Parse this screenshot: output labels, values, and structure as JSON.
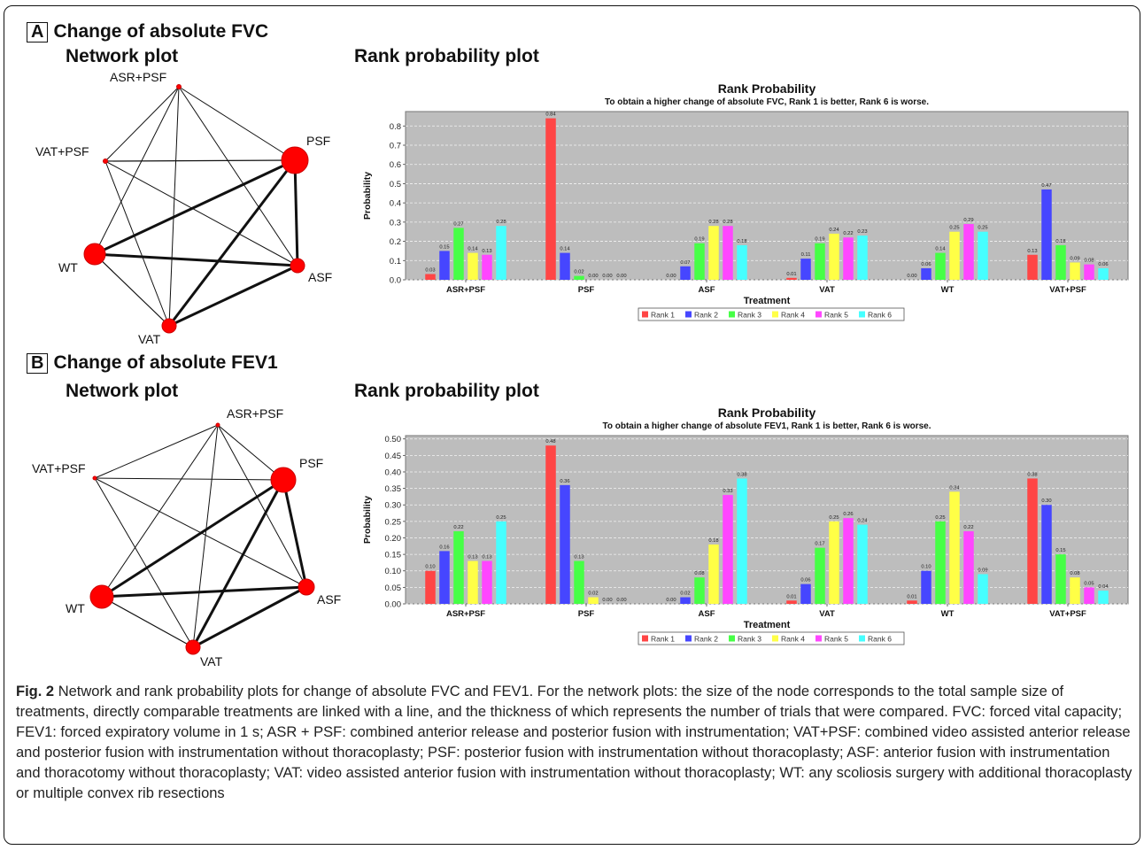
{
  "figure": {
    "caption_label": "Fig. 2",
    "caption_text": "Network and rank probability plots for change of absolute FVC and FEV1. For the network plots: the size of the node corresponds to the total sample size of treatments, directly comparable treatments are linked with a line, and the thickness of which represents the number of trials that were compared. FVC: forced vital capacity; FEV1: forced expiratory volume in 1 s; ASR + PSF: combined anterior release and posterior fusion with instrumentation; VAT+PSF: combined video assisted anterior release and posterior fusion with instrumentation without thoracoplasty; PSF: posterior fusion with instrumentation without thoracoplasty; ASF: anterior fusion with instrumentation and thoracotomy without thoracoplasty; VAT: video assisted anterior fusion with instrumentation without thoracoplasty; WT: any scoliosis surgery with additional thoracoplasty or multiple convex rib resections"
  },
  "panels": [
    {
      "letter": "A",
      "heading": "Change of absolute FVC",
      "network_heading": "Network plot",
      "rank_heading": "Rank probability plot",
      "network": {
        "nodes": [
          {
            "id": "ASR+PSF",
            "label": "ASR+PSF"
          },
          {
            "id": "VAT+PSF",
            "label": "VAT+PSF"
          },
          {
            "id": "PSF",
            "label": "PSF"
          },
          {
            "id": "WT",
            "label": "WT"
          },
          {
            "id": "ASF",
            "label": "ASF"
          },
          {
            "id": "VAT",
            "label": "VAT"
          }
        ]
      }
    },
    {
      "letter": "B",
      "heading": "Change of absolute FEV1",
      "network_heading": "Network plot",
      "rank_heading": "Rank probability plot",
      "network": {
        "nodes": [
          {
            "id": "ASR+PSF",
            "label": "ASR+PSF"
          },
          {
            "id": "VAT+PSF",
            "label": "VAT+PSF"
          },
          {
            "id": "PSF",
            "label": "PSF"
          },
          {
            "id": "WT",
            "label": "WT"
          },
          {
            "id": "ASF",
            "label": "ASF"
          },
          {
            "id": "VAT",
            "label": "VAT"
          }
        ]
      }
    }
  ],
  "chart_data": [
    {
      "type": "bar",
      "title": "Rank Probability",
      "subtitle": "To obtain a higher change of absolute FVC, Rank 1 is better, Rank 6 is worse.",
      "xlabel": "Treatment",
      "ylabel": "Probability",
      "ylim": [
        0,
        0.875
      ],
      "yticks": [
        "0.0",
        "0.1",
        "0.2",
        "0.3",
        "0.4",
        "0.5",
        "0.6",
        "0.7",
        "0.8"
      ],
      "categories": [
        "ASR+PSF",
        "PSF",
        "ASF",
        "VAT",
        "WT",
        "VAT+PSF"
      ],
      "series": [
        {
          "name": "Rank 1",
          "color": "#ff4545",
          "values": [
            0.03,
            0.84,
            0.0,
            0.01,
            0.0,
            0.13
          ]
        },
        {
          "name": "Rank 2",
          "color": "#4646ff",
          "values": [
            0.15,
            0.14,
            0.07,
            0.11,
            0.06,
            0.47
          ]
        },
        {
          "name": "Rank 3",
          "color": "#46ff46",
          "values": [
            0.27,
            0.02,
            0.19,
            0.19,
            0.14,
            0.18
          ]
        },
        {
          "name": "Rank 4",
          "color": "#ffff46",
          "values": [
            0.14,
            0.0,
            0.28,
            0.24,
            0.25,
            0.09
          ]
        },
        {
          "name": "Rank 5",
          "color": "#ff46ff",
          "values": [
            0.13,
            0.0,
            0.28,
            0.22,
            0.29,
            0.08
          ]
        },
        {
          "name": "Rank 6",
          "color": "#46ffff",
          "values": [
            0.28,
            0.0,
            0.18,
            0.23,
            0.25,
            0.06
          ]
        }
      ],
      "value_labels": [
        [
          "0.03",
          "0.84",
          "0.00",
          "0.01",
          "0.00",
          "0.13"
        ],
        [
          "0.15",
          "0.14",
          "0.07",
          "0.11",
          "0.06",
          "0.47"
        ],
        [
          "0.27",
          "0.02",
          "0.19",
          "0.19",
          "0.14",
          "0.18"
        ],
        [
          "0.14",
          "0.00",
          "0.28",
          "0.24",
          "0.25",
          "0.09"
        ],
        [
          "0.13",
          "0.00",
          "0.28",
          "0.22",
          "0.29",
          "0.08"
        ],
        [
          "0.28",
          "0.00",
          "0.18",
          "0.23",
          "0.25",
          "0.06"
        ]
      ],
      "grid": true,
      "legend_position": "bottom",
      "plot_background": "#bdbdbd"
    },
    {
      "type": "bar",
      "title": "Rank Probability",
      "subtitle": "To obtain a higher change of absolute FEV1, Rank 1 is better, Rank 6 is worse.",
      "xlabel": "Treatment",
      "ylabel": "Probability",
      "ylim": [
        0,
        0.51
      ],
      "yticks": [
        "0.00",
        "0.05",
        "0.10",
        "0.15",
        "0.20",
        "0.25",
        "0.30",
        "0.35",
        "0.40",
        "0.45",
        "0.50"
      ],
      "categories": [
        "ASR+PSF",
        "PSF",
        "ASF",
        "VAT",
        "WT",
        "VAT+PSF"
      ],
      "series": [
        {
          "name": "Rank 1",
          "color": "#ff4545",
          "values": [
            0.1,
            0.48,
            0.0,
            0.01,
            0.01,
            0.38
          ]
        },
        {
          "name": "Rank 2",
          "color": "#4646ff",
          "values": [
            0.16,
            0.36,
            0.02,
            0.06,
            0.1,
            0.3
          ]
        },
        {
          "name": "Rank 3",
          "color": "#46ff46",
          "values": [
            0.22,
            0.13,
            0.08,
            0.17,
            0.25,
            0.15
          ]
        },
        {
          "name": "Rank 4",
          "color": "#ffff46",
          "values": [
            0.13,
            0.02,
            0.18,
            0.25,
            0.34,
            0.08
          ]
        },
        {
          "name": "Rank 5",
          "color": "#ff46ff",
          "values": [
            0.13,
            0.0,
            0.33,
            0.26,
            0.22,
            0.05
          ]
        },
        {
          "name": "Rank 6",
          "color": "#46ffff",
          "values": [
            0.25,
            0.0,
            0.38,
            0.24,
            0.09,
            0.04
          ]
        }
      ],
      "value_labels": [
        [
          "0.10",
          "0.48",
          "0.00",
          "0.01",
          "0.01",
          "0.38"
        ],
        [
          "0.16",
          "0.36",
          "0.02",
          "0.06",
          "0.10",
          "0.30"
        ],
        [
          "0.22",
          "0.13",
          "0.08",
          "0.17",
          "0.25",
          "0.15"
        ],
        [
          "0.13",
          "0.02",
          "0.18",
          "0.25",
          "0.34",
          "0.08"
        ],
        [
          "0.13",
          "0.00",
          "0.33",
          "0.26",
          "0.22",
          "0.05"
        ],
        [
          "0.25",
          "0.00",
          "0.38",
          "0.24",
          "0.09",
          "0.04"
        ]
      ],
      "grid": true,
      "legend_position": "bottom",
      "plot_background": "#bdbdbd"
    }
  ]
}
